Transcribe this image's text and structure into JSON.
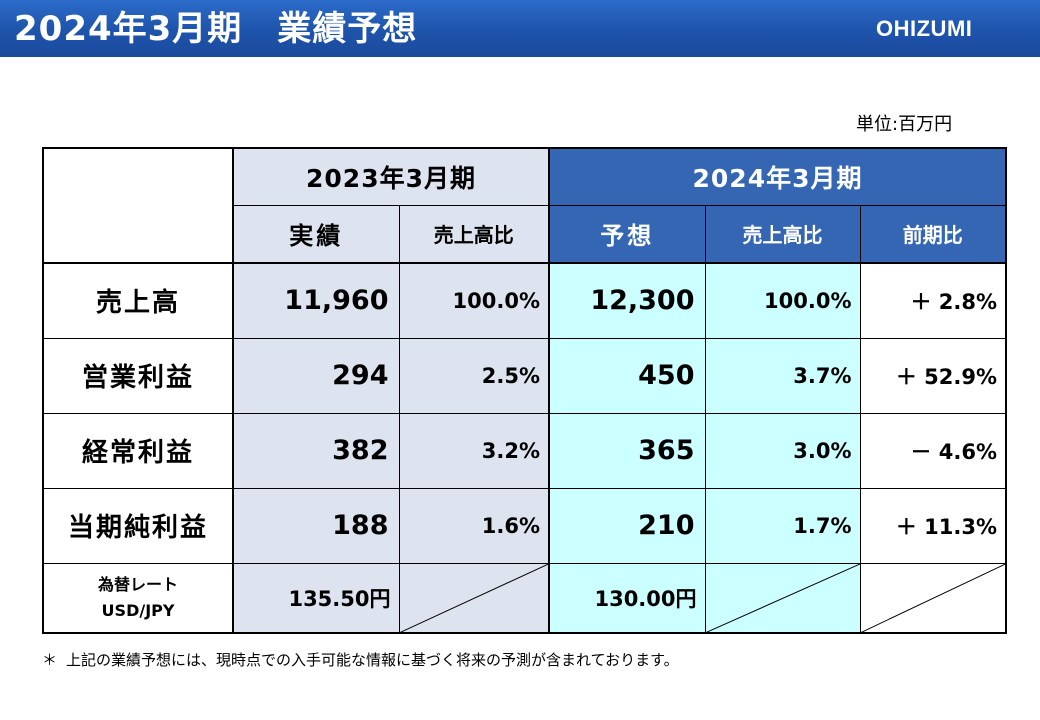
{
  "header": {
    "title": "2024年3月期　業績予想",
    "brand": "OHIZUMI"
  },
  "unit_label": "単位:百万円",
  "columns": {
    "prev_period": "2023年3月期",
    "next_period": "2024年3月期",
    "actual": "実績",
    "ratio": "売上高比",
    "forecast": "予想",
    "ratio2": "売上高比",
    "yoy": "前期比"
  },
  "rows": [
    {
      "label": "売上高",
      "actual": "11,960",
      "actual_ratio": "100.0%",
      "forecast": "12,300",
      "forecast_ratio": "100.0%",
      "yoy": "＋ 2.8%"
    },
    {
      "label": "営業利益",
      "actual": "294",
      "actual_ratio": "2.5%",
      "forecast": "450",
      "forecast_ratio": "3.7%",
      "yoy": "＋ 52.9%"
    },
    {
      "label": "経常利益",
      "actual": "382",
      "actual_ratio": "3.2%",
      "forecast": "365",
      "forecast_ratio": "3.0%",
      "yoy": "－ 4.6%"
    },
    {
      "label": "当期純利益",
      "actual": "188",
      "actual_ratio": "1.6%",
      "forecast": "210",
      "forecast_ratio": "1.7%",
      "yoy": "＋ 11.3%"
    }
  ],
  "fx": {
    "label_line1": "為替レート",
    "label_line2": "USD/JPY",
    "prev": "135.50円",
    "next": "130.00円"
  },
  "footnote": {
    "mark": "＊",
    "text": "上記の業績予想には、現時点での入手可能な情報に基づく将来の予測が含まれております。"
  }
}
